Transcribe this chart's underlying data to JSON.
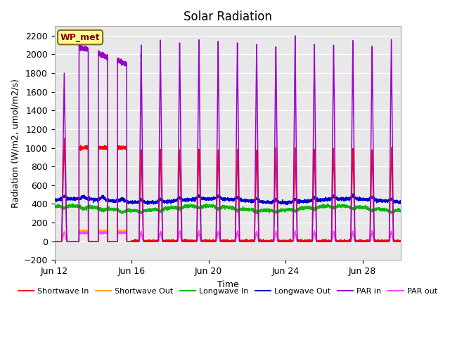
{
  "title": "Solar Radiation",
  "xlabel": "Time",
  "ylabel": "Radiation (W/m2, umol/m2/s)",
  "ylim": [
    -200,
    2300
  ],
  "yticks": [
    -200,
    0,
    200,
    400,
    600,
    800,
    1000,
    1200,
    1400,
    1600,
    1800,
    2000,
    2200
  ],
  "xtick_positions": [
    0,
    4,
    8,
    12,
    16
  ],
  "xtick_labels": [
    "Jun 12",
    "Jun 16",
    "Jun 20",
    "Jun 24",
    "Jun 28"
  ],
  "annotation_text": "WP_met",
  "bg_color": "#e8e8e8",
  "colors": {
    "sw_in": "#ff0000",
    "sw_out": "#ffa500",
    "lw_in": "#00bb00",
    "lw_out": "#0000cc",
    "par_in": "#9900cc",
    "par_out": "#ff44ff"
  },
  "legend_labels": [
    "Shortwave In",
    "Shortwave Out",
    "Longwave In",
    "Longwave Out",
    "PAR in",
    "PAR out"
  ]
}
